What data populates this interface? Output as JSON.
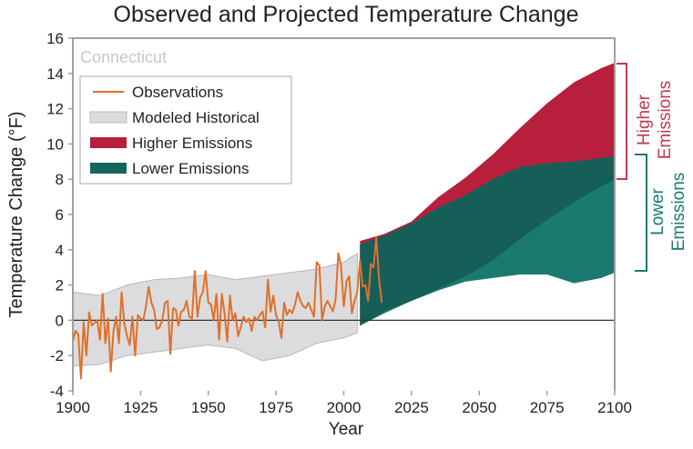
{
  "chart_data": {
    "type": "area",
    "title": "Observed and Projected Temperature Change",
    "region_label": "Connecticut",
    "xlabel": "Year",
    "ylabel": "Temperature Change (°F)",
    "xlim": [
      1900,
      2100
    ],
    "ylim": [
      -4,
      16
    ],
    "xticks": [
      "1900",
      "1925",
      "1950",
      "1975",
      "2000",
      "2025",
      "2050",
      "2075",
      "2100"
    ],
    "yticks": [
      "-4",
      "-2",
      "0",
      "2",
      "4",
      "6",
      "8",
      "10",
      "12",
      "14",
      "16"
    ],
    "grid": false,
    "legend_position": "top-left",
    "legend": [
      {
        "label": "Observations",
        "kind": "line",
        "color": "#e0702a"
      },
      {
        "label": "Modeled Historical",
        "kind": "box",
        "color": "#dcdcde"
      },
      {
        "label": "Higher Emissions",
        "kind": "box",
        "color": "#b71f3d"
      },
      {
        "label": "Lower Emissions",
        "kind": "box",
        "color": "#16655d"
      }
    ],
    "bracket_labels": {
      "higher": [
        "Higher",
        "Emissions"
      ],
      "lower": [
        "Lower",
        "Emissions"
      ]
    },
    "colors": {
      "observations": "#e0702a",
      "modeled_fill": "#dcdcde",
      "modeled_edge": "#b8b8bb",
      "higher": "#b71f3d",
      "lower": "#1a7a6f",
      "overlap": "#155f58",
      "higher_label": "#c0394f",
      "lower_label": "#1a7a6f"
    },
    "modeled_historical": {
      "x": [
        1900,
        1910,
        1920,
        1930,
        1940,
        1950,
        1960,
        1970,
        1980,
        1990,
        2000,
        2005
      ],
      "upper": [
        1.6,
        1.4,
        2.0,
        2.3,
        2.4,
        2.6,
        2.3,
        2.5,
        2.7,
        2.9,
        3.3,
        3.8
      ],
      "lower": [
        -2.6,
        -2.5,
        -2.0,
        -1.8,
        -1.6,
        -1.4,
        -1.6,
        -2.3,
        -2.0,
        -1.3,
        -1.0,
        -0.7
      ]
    },
    "projections": {
      "x": [
        2006,
        2015,
        2025,
        2035,
        2045,
        2055,
        2065,
        2075,
        2085,
        2095,
        2100
      ],
      "higher_upper": [
        4.5,
        4.9,
        5.6,
        7.0,
        8.1,
        9.4,
        10.9,
        12.3,
        13.5,
        14.3,
        14.6
      ],
      "higher_lower": [
        -0.3,
        0.5,
        1.1,
        1.8,
        2.5,
        3.4,
        4.6,
        5.7,
        6.7,
        7.6,
        8.0
      ],
      "lower_upper": [
        4.3,
        4.8,
        5.5,
        6.4,
        7.1,
        8.0,
        8.7,
        8.9,
        9.0,
        9.2,
        9.3
      ],
      "lower_lower": [
        -0.3,
        0.4,
        1.1,
        1.7,
        2.2,
        2.4,
        2.6,
        2.6,
        2.1,
        2.4,
        2.7
      ]
    },
    "observations": {
      "start_year": 1900,
      "values": [
        -1.2,
        -0.6,
        -0.8,
        -3.3,
        -0.1,
        -2.0,
        0.45,
        -0.3,
        -0.15,
        0,
        -1.1,
        1.5,
        -1.3,
        0.1,
        -2.9,
        -0.6,
        0.2,
        -1.3,
        1.6,
        -0.2,
        -0.9,
        -1.4,
        0.2,
        -2.0,
        0.3,
        0.1,
        0,
        0.8,
        1.9,
        1.0,
        0.6,
        -0.5,
        -0.4,
        0,
        1.0,
        1.1,
        -1.9,
        0.7,
        0.6,
        -0.3,
        0.5,
        0.6,
        1.1,
        0.2,
        0.1,
        2.8,
        0.2,
        1.3,
        1.6,
        2.8,
        1.0,
        0.9,
        0,
        1.5,
        -1.1,
        1.5,
        0.4,
        -1.2,
        1.4,
        0.0,
        0.4,
        -0.9,
        -0.4,
        0.2,
        -0.1,
        0.1,
        -0.6,
        0.2,
        0.0,
        0.3,
        0.5,
        -0.4,
        2.3,
        0.5,
        1.4,
        0.3,
        -0.1,
        -1.0,
        1.0,
        0.3,
        0.6,
        0.4,
        0.9,
        1.6,
        1.1,
        0.8,
        0.7,
        1.0,
        0.6,
        0.2,
        3.3,
        3.1,
        0.0,
        0.8,
        1.1,
        0.8,
        0.5,
        1.2,
        3.8,
        3.1,
        0.8,
        2.2,
        2.5,
        0.4,
        1.1,
        1.6,
        3.4,
        1.9,
        2.0,
        1.1,
        3.2,
        3.0,
        4.7,
        2.4,
        1.0
      ]
    }
  }
}
